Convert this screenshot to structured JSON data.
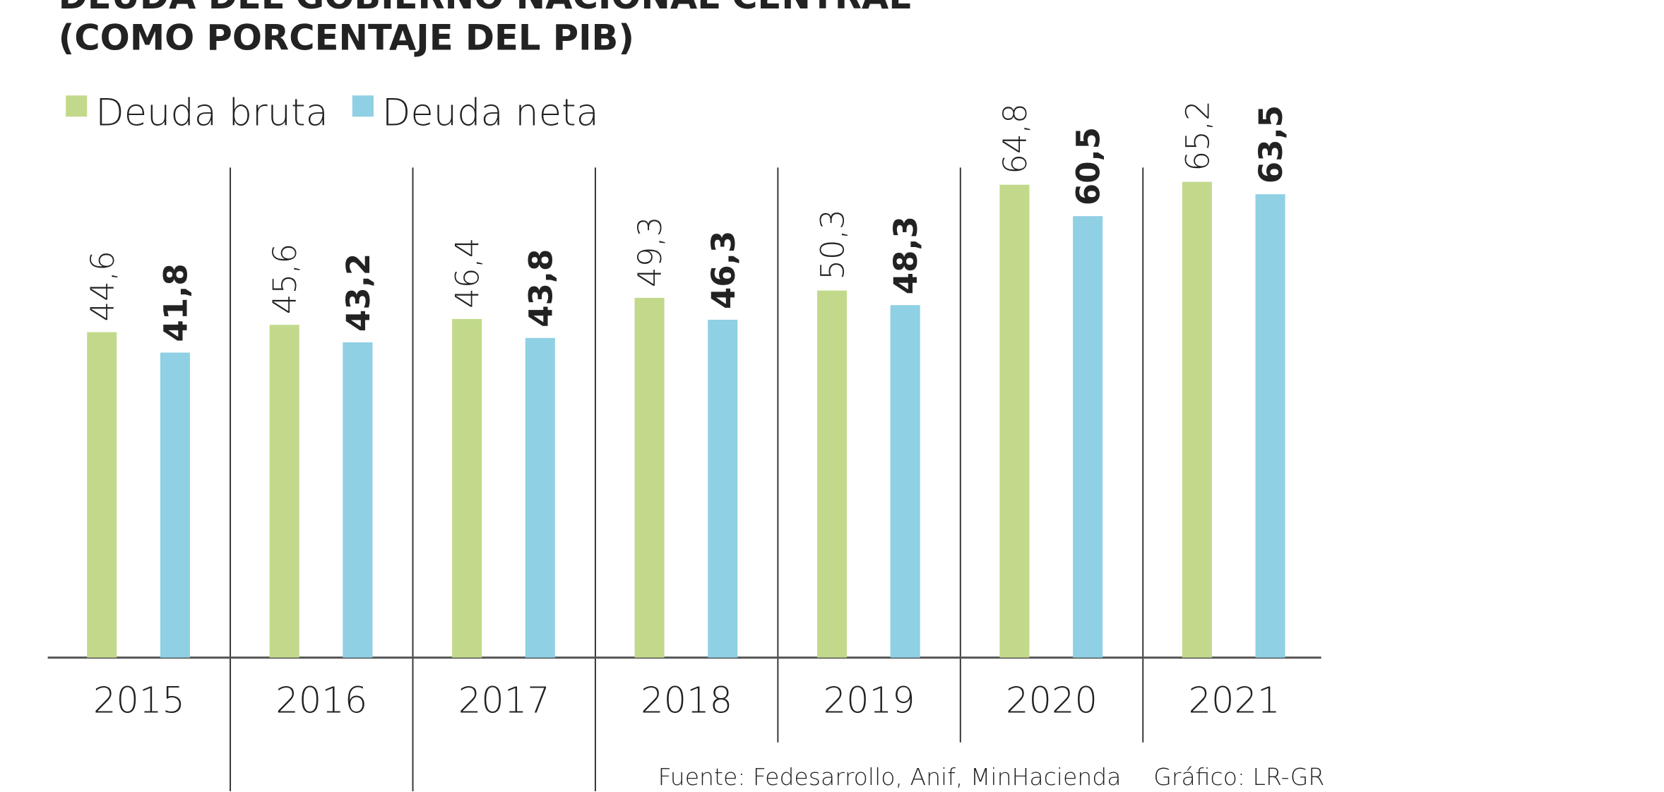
{
  "chart_data": {
    "type": "bar",
    "title": "DEUDA DEL GOBIERNO NACIONAL CENTRAL",
    "subtitle": "(COMO PORCENTAJE DEL PIB)",
    "categories": [
      "2015",
      "2016",
      "2017",
      "2018",
      "2019",
      "2020",
      "2021"
    ],
    "series": [
      {
        "name": "Deuda bruta",
        "color": "#c2d98b",
        "values": [
          44.6,
          45.6,
          46.4,
          49.3,
          50.3,
          64.8,
          65.2
        ],
        "value_labels": [
          "44,6",
          "45,6",
          "46,4",
          "49,3",
          "50,3",
          "64,8",
          "65,2"
        ]
      },
      {
        "name": "Deuda neta",
        "color": "#8fd0e4",
        "values": [
          41.8,
          43.2,
          43.8,
          46.3,
          48.3,
          60.5,
          63.5
        ],
        "value_labels": [
          "41,8",
          "43,2",
          "43,8",
          "46,3",
          "48,3",
          "60,5",
          "63,5"
        ]
      }
    ],
    "source": "Fuente: Fedesarrollo, Anif, MinHacienda",
    "credit": "Gráfico: LR-GR"
  }
}
